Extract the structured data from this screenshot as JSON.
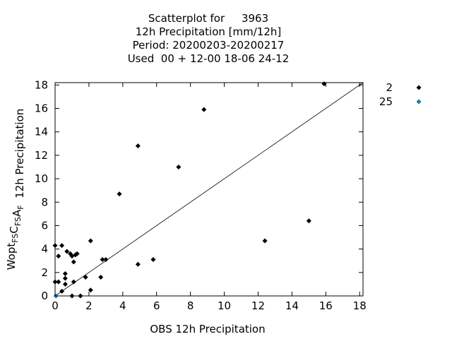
{
  "chart_data": {
    "type": "scatter",
    "title_lines": [
      "Scatterplot for     3963",
      "12h Precipitation [mm/12h]",
      "Period: 20200203-20200217",
      "Used  00 + 12-00 18-06 24-12"
    ],
    "xlabel": "OBS 12h Precipitation",
    "ylabel": {
      "parts": [
        {
          "t": "Wopt",
          "sub": false
        },
        {
          "t": "FS",
          "sub": true
        },
        {
          "t": "C",
          "sub": false
        },
        {
          "t": "FS",
          "sub": true
        },
        {
          "t": "A",
          "sub": false
        },
        {
          "t": "F",
          "sub": true
        },
        {
          "t": "  12h Precipitation",
          "sub": false
        }
      ]
    },
    "xlim": [
      0,
      18.2
    ],
    "ylim": [
      0,
      18.2
    ],
    "xticks": [
      0,
      2,
      4,
      6,
      8,
      10,
      12,
      14,
      16,
      18
    ],
    "yticks": [
      0,
      2,
      4,
      6,
      8,
      10,
      12,
      14,
      16,
      18
    ],
    "grid": false,
    "legend_position": "outside-right",
    "reference_line": {
      "from": [
        0,
        0
      ],
      "to": [
        18.2,
        18.2
      ]
    },
    "series": [
      {
        "name": "2",
        "color": "#000000",
        "marker": "diamond",
        "points": [
          [
            0.0,
            4.3
          ],
          [
            0.0,
            1.2
          ],
          [
            0.2,
            1.2
          ],
          [
            0.2,
            3.4
          ],
          [
            0.4,
            4.3
          ],
          [
            0.4,
            0.4
          ],
          [
            0.6,
            1.9
          ],
          [
            0.6,
            1.5
          ],
          [
            0.6,
            1.0
          ],
          [
            0.7,
            3.8
          ],
          [
            0.9,
            3.6
          ],
          [
            1.0,
            3.4
          ],
          [
            1.0,
            0.0
          ],
          [
            1.1,
            2.9
          ],
          [
            1.1,
            1.2
          ],
          [
            1.2,
            3.5
          ],
          [
            1.3,
            3.6
          ],
          [
            1.5,
            0.0
          ],
          [
            1.8,
            1.6
          ],
          [
            2.1,
            4.7
          ],
          [
            2.1,
            0.5
          ],
          [
            2.7,
            1.6
          ],
          [
            2.8,
            3.1
          ],
          [
            3.0,
            3.1
          ],
          [
            3.8,
            8.7
          ],
          [
            4.9,
            12.8
          ],
          [
            4.9,
            2.7
          ],
          [
            5.8,
            3.1
          ],
          [
            7.3,
            11.0
          ],
          [
            8.8,
            15.9
          ],
          [
            12.4,
            4.7
          ],
          [
            15.0,
            6.4
          ],
          [
            15.9,
            18.1
          ]
        ]
      },
      {
        "name": "25",
        "color": "#1a7ab0",
        "marker": "diamond",
        "points": [
          [
            0.05,
            0.0
          ]
        ]
      }
    ]
  }
}
